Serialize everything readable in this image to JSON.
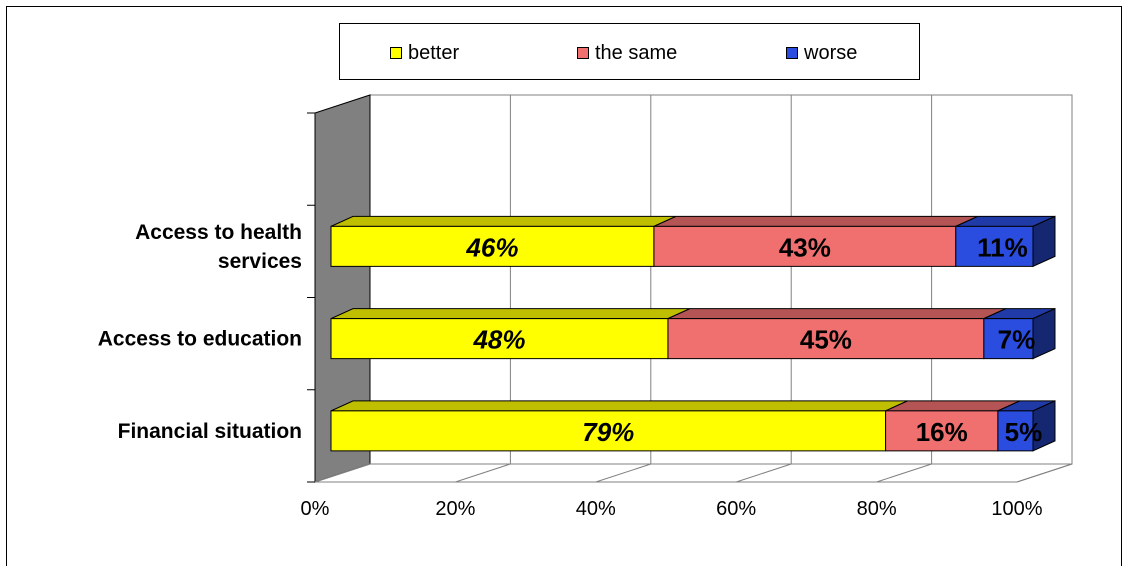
{
  "chart_data": {
    "type": "bar",
    "orientation": "horizontal",
    "stacked": "100%",
    "categories": [
      "Access to health services",
      "Access to education",
      "Financial situation"
    ],
    "category_lines": [
      [
        "Access to health",
        "services"
      ],
      [
        "Access to education"
      ],
      [
        "Financial situation"
      ]
    ],
    "series": [
      {
        "name": "better",
        "values": [
          46,
          48,
          79
        ],
        "color": "#ffff00",
        "italic_labels": true
      },
      {
        "name": "the same",
        "values": [
          43,
          45,
          16
        ],
        "color": "#f07070",
        "italic_labels": false
      },
      {
        "name": "worse",
        "values": [
          11,
          7,
          5
        ],
        "color": "#2a4de0",
        "italic_labels": false
      }
    ],
    "data_labels": [
      [
        "46%",
        "43%",
        "11%"
      ],
      [
        "48%",
        "45%",
        "7%"
      ],
      [
        "79%",
        "16%",
        "5%"
      ]
    ],
    "x_ticks": [
      "0%",
      "20%",
      "40%",
      "60%",
      "80%",
      "100%"
    ],
    "xlim": [
      0,
      100
    ],
    "grid": true,
    "legend_position": "top",
    "style": "3d"
  }
}
